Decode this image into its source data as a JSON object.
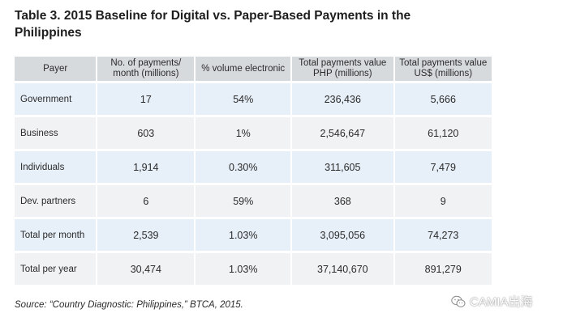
{
  "title": "Table 3. 2015 Baseline for Digital vs. Paper-Based Payments in the Philippines",
  "table": {
    "headers": [
      "Payer",
      "No. of payments/ month (millions)",
      "% volume electronic",
      "Total payments value PHP (millions)",
      "Total payments value US$ (millions)"
    ],
    "rows": [
      [
        "Government",
        "17",
        "54%",
        "236,436",
        "5,666"
      ],
      [
        "Business",
        "603",
        "1%",
        "2,546,647",
        "61,120"
      ],
      [
        "Individuals",
        "1,914",
        "0.30%",
        "311,605",
        "7,479"
      ],
      [
        "Dev. partners",
        "6",
        "59%",
        "368",
        "9"
      ],
      [
        "Total per month",
        "2,539",
        "1.03%",
        "3,095,056",
        "74,273"
      ],
      [
        "Total per year",
        "30,474",
        "1.03%",
        "37,140,670",
        "891,279"
      ]
    ]
  },
  "source": "Source: “Country Diagnostic: Philippines,” BTCA, 2015.",
  "watermark": {
    "text": "CAMIA出海",
    "icon": "wechat-icon"
  },
  "colors": {
    "header_bg": "#d7dadd",
    "row_shaded_bg": "#e7eff8",
    "row_plain_bg": "#f1f2f3"
  }
}
